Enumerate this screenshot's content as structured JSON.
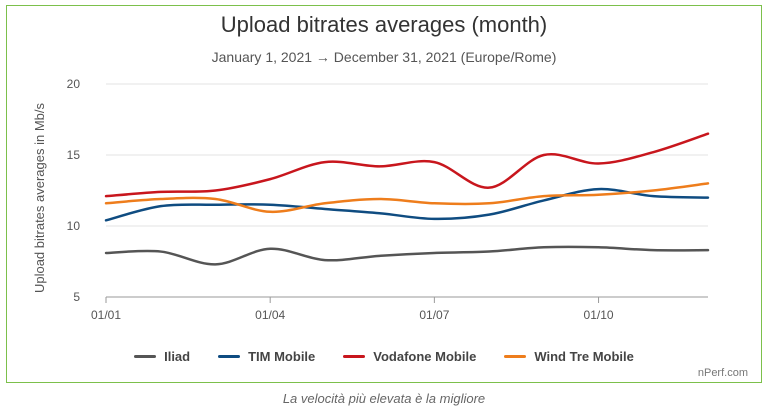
{
  "chart_data": {
    "type": "line",
    "title": "Upload bitrates averages (month)",
    "subtitle": "January 1, 2021 → December 31, 2021 (Europe/Rome)",
    "ylabel": "Upload bitrates averages in Mb/s",
    "xlabel": "",
    "ylim": [
      5,
      20
    ],
    "yticks": [
      5,
      10,
      15,
      20
    ],
    "xlim": [
      1,
      12
    ],
    "x": [
      1,
      2,
      3,
      4,
      5,
      6,
      7,
      8,
      9,
      10,
      11,
      12
    ],
    "xticks": [
      {
        "x": 1,
        "label": "01/01"
      },
      {
        "x": 4,
        "label": "01/04"
      },
      {
        "x": 7,
        "label": "01/07"
      },
      {
        "x": 10,
        "label": "01/10"
      }
    ],
    "grid": "horizontal",
    "legend": "bottom",
    "series": [
      {
        "name": "Iliad",
        "color": "#555555",
        "values": [
          8.1,
          8.2,
          7.3,
          8.4,
          7.6,
          7.9,
          8.1,
          8.2,
          8.5,
          8.5,
          8.3,
          8.3
        ]
      },
      {
        "name": "TIM Mobile",
        "color": "#0f4c81",
        "values": [
          10.4,
          11.4,
          11.5,
          11.5,
          11.2,
          10.9,
          10.5,
          10.8,
          11.8,
          12.6,
          12.1,
          12.0
        ]
      },
      {
        "name": "Vodafone Mobile",
        "color": "#c8161d",
        "values": [
          12.1,
          12.4,
          12.5,
          13.3,
          14.5,
          14.2,
          14.5,
          12.7,
          15.0,
          14.4,
          15.2,
          16.5
        ]
      },
      {
        "name": "Wind Tre Mobile",
        "color": "#ee7d1c",
        "values": [
          11.6,
          11.9,
          11.9,
          11.0,
          11.6,
          11.9,
          11.6,
          11.6,
          12.1,
          12.2,
          12.5,
          13.0
        ]
      }
    ]
  },
  "watermark": "nPerf.com",
  "caption": "La velocità più elevata è la migliore"
}
